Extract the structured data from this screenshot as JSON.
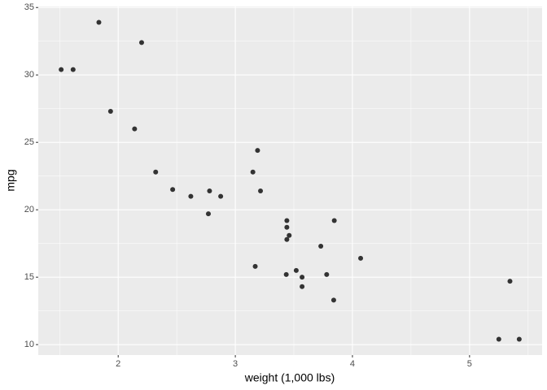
{
  "chart_data": {
    "type": "scatter",
    "x_label": "weight (1,000 lbs)",
    "y_label": "mpg",
    "x": [
      2.62,
      2.875,
      2.32,
      3.215,
      3.44,
      3.46,
      3.57,
      3.19,
      3.15,
      3.44,
      3.44,
      4.07,
      3.73,
      3.78,
      5.25,
      5.424,
      5.345,
      2.2,
      1.615,
      1.835,
      2.465,
      3.52,
      3.435,
      3.84,
      3.845,
      1.935,
      2.14,
      1.513,
      3.17,
      2.77,
      3.57,
      2.78
    ],
    "values": [
      21.0,
      21.0,
      22.8,
      21.4,
      18.7,
      18.1,
      14.3,
      24.4,
      22.8,
      19.2,
      17.8,
      16.4,
      17.3,
      15.2,
      10.4,
      10.4,
      14.7,
      32.4,
      30.4,
      33.9,
      21.5,
      15.5,
      15.2,
      13.3,
      19.2,
      27.3,
      26.0,
      30.4,
      15.8,
      19.7,
      15.0,
      21.4
    ],
    "color": "#333333",
    "xlim": [
      1.31745,
      5.61955
    ],
    "ylim": [
      9.225,
      35.075
    ],
    "xticks": [
      2,
      3,
      4,
      5
    ],
    "yticks": [
      10,
      15,
      20,
      25,
      30,
      35
    ],
    "x_minor_grid": [
      1.5,
      2.5,
      3.5,
      4.5,
      5.5
    ],
    "y_minor_grid": [
      12.5,
      17.5,
      22.5,
      27.5,
      32.5
    ],
    "grid": true
  }
}
